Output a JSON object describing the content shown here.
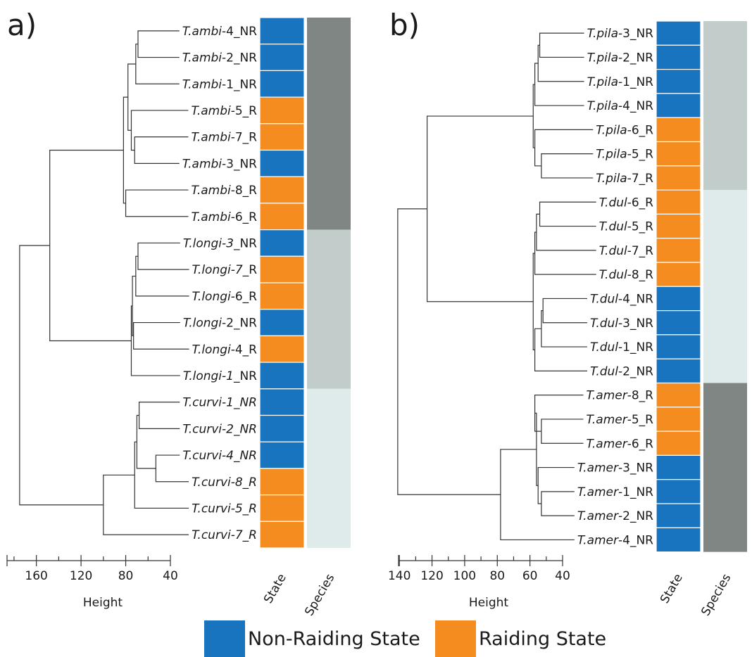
{
  "colors": {
    "non_raiding": "#1874BE",
    "raiding": "#F58C20",
    "species_dark": "#808683",
    "species_mid": "#C2CCCB",
    "species_light": "#DFEBEB",
    "line": "#333333"
  },
  "panels": [
    {
      "label": "a)",
      "axis_title": "Height",
      "ticks": [
        "160",
        "120",
        "80",
        "40"
      ],
      "column_labels": [
        "State",
        "Species"
      ],
      "leaves": [
        {
          "genus": "T.",
          "name": "ambi",
          "rest": "-4_NR",
          "state": "NR"
        },
        {
          "genus": "T.",
          "name": "ambi",
          "rest": "-2_NR",
          "state": "NR"
        },
        {
          "genus": "T.",
          "name": "ambi",
          "rest": "-1_NR",
          "state": "NR"
        },
        {
          "genus": "T.",
          "name": "ambi",
          "rest": "-5_R",
          "state": "R"
        },
        {
          "genus": "T.",
          "name": "ambi",
          "rest": "-7_R",
          "state": "R"
        },
        {
          "genus": "T.",
          "name": "ambi",
          "rest": "-3_NR",
          "state": "NR"
        },
        {
          "genus": "T.",
          "name": "ambi",
          "rest": "-8_R",
          "state": "R"
        },
        {
          "genus": "T.",
          "name": "ambi",
          "rest": "-6_R",
          "state": "R"
        },
        {
          "genus": "T.",
          "name": "longi-3",
          "rest": "_NR",
          "state": "NR"
        },
        {
          "genus": "T.",
          "name": "longi-7",
          "rest": "_R",
          "state": "R"
        },
        {
          "genus": "T.",
          "name": "longi",
          "rest": "-6_R",
          "state": "R"
        },
        {
          "genus": "T.",
          "name": "longi",
          "rest": "-2_NR",
          "state": "NR"
        },
        {
          "genus": "T.",
          "name": "longi",
          "rest": "-4_R",
          "state": "R"
        },
        {
          "genus": "T.",
          "name": "longi-1",
          "rest": "_NR",
          "state": "NR"
        },
        {
          "genus": "T.",
          "name": "curvi-1_NR",
          "rest": "",
          "state": "NR"
        },
        {
          "genus": "T.",
          "name": "curvi-2_NR",
          "rest": "",
          "state": "NR"
        },
        {
          "genus": "T.",
          "name": "curvi-4_NR",
          "rest": "",
          "state": "NR"
        },
        {
          "genus": "T.",
          "name": "curvi-8_R",
          "rest": "",
          "state": "R"
        },
        {
          "genus": "T.",
          "name": "curvi-5_R",
          "rest": "",
          "state": "R"
        },
        {
          "genus": "T.",
          "name": "curvi-7_R",
          "rest": "",
          "state": "R"
        }
      ],
      "species_groups": [
        {
          "from": 0,
          "to": 7,
          "shade": "dark"
        },
        {
          "from": 8,
          "to": 13,
          "shade": "mid"
        },
        {
          "from": 14,
          "to": 19,
          "shade": "light"
        }
      ],
      "heights": [
        0,
        0,
        0,
        0,
        0,
        0,
        0,
        0,
        0,
        0,
        0,
        0,
        0,
        0,
        0,
        0,
        0,
        0,
        0,
        0
      ],
      "merges": [
        {
          "a": 0,
          "b": 1,
          "h": 69
        },
        {
          "a": 2,
          "b": 20,
          "h": 71
        },
        {
          "a": 4,
          "b": 5,
          "h": 72
        },
        {
          "a": 3,
          "b": 22,
          "h": 75
        },
        {
          "a": 21,
          "b": 23,
          "h": 78
        },
        {
          "a": 6,
          "b": 7,
          "h": 80
        },
        {
          "a": 24,
          "b": 25,
          "h": 82
        },
        {
          "a": 8,
          "b": 9,
          "h": 69
        },
        {
          "a": 27,
          "b": 10,
          "h": 71
        },
        {
          "a": 11,
          "b": 12,
          "h": 73
        },
        {
          "a": 28,
          "b": 29,
          "h": 74
        },
        {
          "a": 30,
          "b": 13,
          "h": 75
        },
        {
          "a": 26,
          "b": 31,
          "h": 148
        },
        {
          "a": 14,
          "b": 15,
          "h": 68
        },
        {
          "a": 16,
          "b": 17,
          "h": 53
        },
        {
          "a": 33,
          "b": 34,
          "h": 70
        },
        {
          "a": 35,
          "b": 18,
          "h": 72
        },
        {
          "a": 36,
          "b": 19,
          "h": 100
        },
        {
          "a": 32,
          "b": 37,
          "h": 175
        }
      ]
    },
    {
      "label": "b)",
      "axis_title": "Height",
      "ticks": [
        "140",
        "120",
        "100",
        "80",
        "60",
        "40"
      ],
      "column_labels": [
        "State",
        "Species"
      ],
      "leaves": [
        {
          "genus": "T.",
          "name": "pila",
          "rest": "-3_NR",
          "state": "NR"
        },
        {
          "genus": "T.",
          "name": "pila",
          "rest": "-2_NR",
          "state": "NR"
        },
        {
          "genus": "T.",
          "name": "pila",
          "rest": "-1_NR",
          "state": "NR"
        },
        {
          "genus": "T.",
          "name": "pila",
          "rest": "-4_NR",
          "state": "NR"
        },
        {
          "genus": "T.",
          "name": "pila",
          "rest": "-6_R",
          "state": "R"
        },
        {
          "genus": "T.",
          "name": "pila",
          "rest": "-5_R",
          "state": "R"
        },
        {
          "genus": "T.",
          "name": "pila",
          "rest": "-7_R",
          "state": "R"
        },
        {
          "genus": "T.",
          "name": "dul",
          "rest": "-6_R",
          "state": "R"
        },
        {
          "genus": "T.",
          "name": "dul",
          "rest": "-5_R",
          "state": "R"
        },
        {
          "genus": "T.",
          "name": "dul",
          "rest": "-7_R",
          "state": "R"
        },
        {
          "genus": "T.",
          "name": "dul",
          "rest": "-8_R",
          "state": "R"
        },
        {
          "genus": "T.",
          "name": "dul",
          "rest": "-4_NR",
          "state": "NR"
        },
        {
          "genus": "T.",
          "name": "dul",
          "rest": "-3_NR",
          "state": "NR"
        },
        {
          "genus": "T.",
          "name": "dul",
          "rest": "-1_NR",
          "state": "NR"
        },
        {
          "genus": "T.",
          "name": "dul",
          "rest": "-2_NR",
          "state": "NR"
        },
        {
          "genus": "T.",
          "name": "amer",
          "rest": "-8_R",
          "state": "R"
        },
        {
          "genus": "T.",
          "name": "amer",
          "rest": "-5_R",
          "state": "R"
        },
        {
          "genus": "T.",
          "name": "amer",
          "rest": "-6_R",
          "state": "R"
        },
        {
          "genus": "T.",
          "name": "amer",
          "rest": "-3_NR",
          "state": "NR"
        },
        {
          "genus": "T.",
          "name": "amer",
          "rest": "-1_NR",
          "state": "NR"
        },
        {
          "genus": "T.",
          "name": "amer",
          "rest": "-2_NR",
          "state": "NR"
        },
        {
          "genus": "T.",
          "name": "amer",
          "rest": "-4_NR",
          "state": "NR"
        }
      ],
      "species_groups": [
        {
          "from": 0,
          "to": 6,
          "shade": "mid"
        },
        {
          "from": 7,
          "to": 14,
          "shade": "light"
        },
        {
          "from": 15,
          "to": 21,
          "shade": "dark"
        }
      ],
      "merges": [
        {
          "a": 0,
          "b": 1,
          "h": 54
        },
        {
          "a": 22,
          "b": 2,
          "h": 55
        },
        {
          "a": 23,
          "b": 3,
          "h": 57
        },
        {
          "a": 5,
          "b": 6,
          "h": 53
        },
        {
          "a": 4,
          "b": 25,
          "h": 57
        },
        {
          "a": 24,
          "b": 26,
          "h": 58
        },
        {
          "a": 7,
          "b": 8,
          "h": 54
        },
        {
          "a": 28,
          "b": 9,
          "h": 56
        },
        {
          "a": 29,
          "b": 10,
          "h": 57
        },
        {
          "a": 11,
          "b": 12,
          "h": 52
        },
        {
          "a": 31,
          "b": 13,
          "h": 53
        },
        {
          "a": 32,
          "b": 14,
          "h": 57
        },
        {
          "a": 30,
          "b": 33,
          "h": 58
        },
        {
          "a": 27,
          "b": 34,
          "h": 123
        },
        {
          "a": 16,
          "b": 17,
          "h": 53
        },
        {
          "a": 15,
          "b": 36,
          "h": 57
        },
        {
          "a": 19,
          "b": 20,
          "h": 53
        },
        {
          "a": 18,
          "b": 38,
          "h": 55
        },
        {
          "a": 37,
          "b": 39,
          "h": 56
        },
        {
          "a": 40,
          "b": 21,
          "h": 78
        },
        {
          "a": 35,
          "b": 41,
          "h": 141
        }
      ]
    }
  ],
  "legend": {
    "non_raiding_label": "Non-Raiding State",
    "raiding_label": "Raiding State"
  }
}
